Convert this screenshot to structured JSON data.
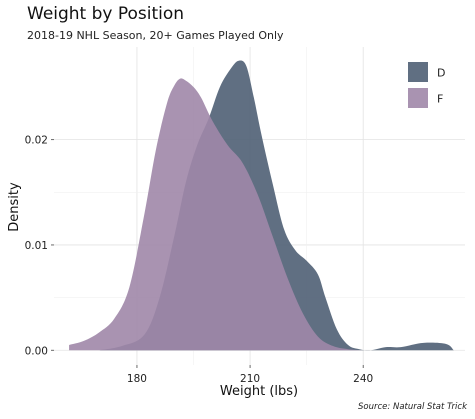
{
  "chart_data": {
    "type": "area",
    "title": "Weight by Position",
    "subtitle": "2018-19 NHL Season, 20+ Games Played Only",
    "caption": "Source: Natural Stat Trick",
    "xlabel": "Weight (lbs)",
    "ylabel": "Density",
    "xlim": [
      158,
      267
    ],
    "ylim": [
      -0.0014,
      0.0288
    ],
    "x_ticks": [
      180,
      210,
      240
    ],
    "x_tick_labels": [
      "180",
      "210",
      "240"
    ],
    "y_ticks": [
      0.0,
      0.01,
      0.02
    ],
    "y_tick_labels": [
      "0.00",
      "0.01",
      "0.02"
    ],
    "grid": true,
    "legend_position": "top-right",
    "series": [
      {
        "name": "D",
        "color": "#4f5f74",
        "points": [
          [
            170,
            0.0
          ],
          [
            176,
            0.0004
          ],
          [
            182,
            0.0015
          ],
          [
            186,
            0.005
          ],
          [
            190,
            0.011
          ],
          [
            193,
            0.016
          ],
          [
            196,
            0.0195
          ],
          [
            199,
            0.022
          ],
          [
            202,
            0.025
          ],
          [
            205,
            0.0268
          ],
          [
            207,
            0.0275
          ],
          [
            209,
            0.027
          ],
          [
            211,
            0.024
          ],
          [
            213,
            0.0205
          ],
          [
            216,
            0.0158
          ],
          [
            219,
            0.0115
          ],
          [
            222,
            0.0095
          ],
          [
            225,
            0.0085
          ],
          [
            228,
            0.0072
          ],
          [
            230,
            0.005
          ],
          [
            233,
            0.002
          ],
          [
            236,
            0.0005
          ],
          [
            239,
            0.0001
          ],
          [
            242,
            0.0
          ],
          [
            246,
            0.0003
          ],
          [
            250,
            0.0003
          ],
          [
            256,
            0.0007
          ],
          [
            262,
            0.0006
          ],
          [
            264,
            0.0
          ]
        ]
      },
      {
        "name": "F",
        "color": "#a087a8",
        "points": [
          [
            162,
            0.0005
          ],
          [
            166,
            0.0009
          ],
          [
            170,
            0.0017
          ],
          [
            174,
            0.003
          ],
          [
            178,
            0.006
          ],
          [
            182,
            0.013
          ],
          [
            185,
            0.019
          ],
          [
            188,
            0.0235
          ],
          [
            190,
            0.0252
          ],
          [
            191.5,
            0.0258
          ],
          [
            193,
            0.0256
          ],
          [
            195,
            0.025
          ],
          [
            197,
            0.024
          ],
          [
            200,
            0.0218
          ],
          [
            204,
            0.0195
          ],
          [
            208,
            0.0178
          ],
          [
            212,
            0.0148
          ],
          [
            216,
            0.0108
          ],
          [
            220,
            0.0068
          ],
          [
            224,
            0.0035
          ],
          [
            228,
            0.0013
          ],
          [
            232,
            0.0004
          ],
          [
            236,
            0.0001
          ],
          [
            240,
            0.0
          ]
        ]
      }
    ]
  }
}
